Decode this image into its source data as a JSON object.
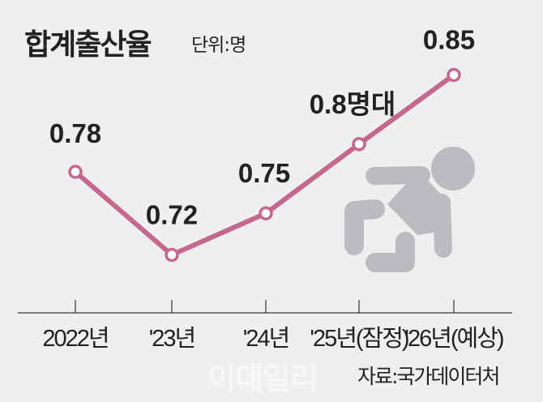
{
  "title": "합계출산율",
  "unit": "단위:명",
  "source": "자료:국가데이터처",
  "watermark": "이데일리",
  "icon": "baby-crawling-icon",
  "colors": {
    "line": "#c4688f",
    "marker_fill": "#ffffff",
    "icon": "#bcbcc0",
    "background": "#efefef"
  },
  "chart_data": {
    "type": "line",
    "title": "합계출산율",
    "ylabel": "단위:명",
    "categories": [
      "2022년",
      "'23년",
      "'24년",
      "'25년(잠정)",
      "'26년(예상)"
    ],
    "values": [
      0.78,
      0.72,
      0.75,
      0.8,
      0.85
    ],
    "data_labels": [
      "0.78",
      "0.72",
      "0.75",
      "0.8명대",
      "0.85"
    ],
    "grid": false,
    "legend": "none"
  }
}
